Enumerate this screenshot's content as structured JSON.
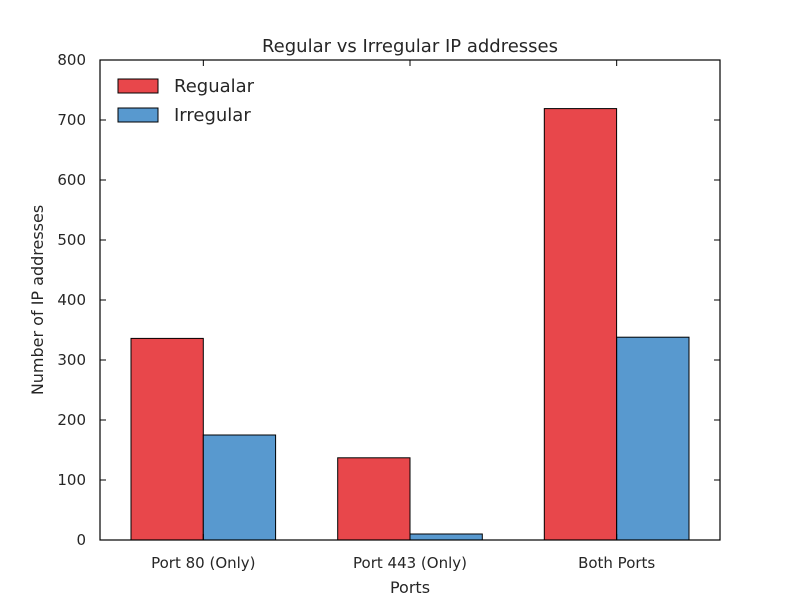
{
  "chart_data": {
    "type": "bar",
    "title": "Regular vs Irregular IP addresses",
    "xlabel": "Ports",
    "ylabel": "Number of IP addresses",
    "categories": [
      "Port 80 (Only)",
      "Port 443 (Only)",
      "Both Ports"
    ],
    "series": [
      {
        "name": "Regualar",
        "values": [
          336,
          137,
          719
        ],
        "color": "#e8474b"
      },
      {
        "name": "Irregular",
        "values": [
          175,
          10,
          338
        ],
        "color": "#5899cf"
      }
    ],
    "ylim": [
      0,
      800
    ],
    "yticks": [
      0,
      100,
      200,
      300,
      400,
      500,
      600,
      700,
      800
    ],
    "grid": false,
    "legend_position": "top-left"
  }
}
